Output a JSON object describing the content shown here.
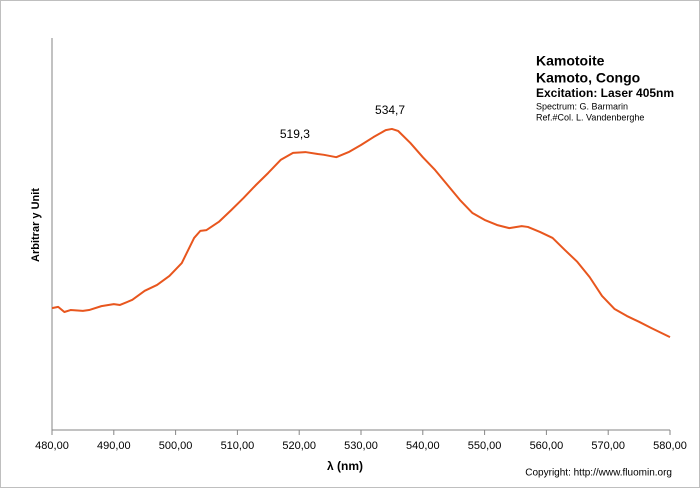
{
  "chart_data": {
    "type": "line",
    "title": "Kamotoite",
    "subtitle": "Kamoto, Congo",
    "notes": [
      "Excitation:  Laser 405nm",
      "Spectrum: G. Barmarin",
      "Ref.#Col. L. Vandenberghe"
    ],
    "copyright": "Copyright: http://www.fluomin.org",
    "x_label": "λ (nm)",
    "y_label": "Arbitrar y Unit",
    "xlim": [
      480,
      580
    ],
    "xticks": [
      {
        "value": 480,
        "label": "480,00"
      },
      {
        "value": 490,
        "label": "490,00"
      },
      {
        "value": 500,
        "label": "500,00"
      },
      {
        "value": 510,
        "label": "510,00"
      },
      {
        "value": 520,
        "label": "520,00"
      },
      {
        "value": 530,
        "label": "530,00"
      },
      {
        "value": 540,
        "label": "540,00"
      },
      {
        "value": 550,
        "label": "550,00"
      },
      {
        "value": 560,
        "label": "560,00"
      },
      {
        "value": 570,
        "label": "570,00"
      },
      {
        "value": 580,
        "label": "580,00"
      }
    ],
    "ylim": [
      0,
      100
    ],
    "peaks": [
      {
        "x": 519.3,
        "label": "519,3"
      },
      {
        "x": 534.7,
        "label": "534,7"
      }
    ],
    "x": [
      480,
      481,
      482,
      483,
      485,
      486,
      488,
      490,
      491,
      493,
      495,
      497,
      499,
      501,
      503,
      504,
      505,
      507,
      509,
      511,
      513,
      515,
      517,
      519,
      521,
      523,
      524,
      526,
      528,
      530,
      532,
      534,
      535,
      536,
      538,
      540,
      542,
      544,
      546,
      548,
      550,
      552,
      554,
      556,
      557,
      559,
      561,
      563,
      565,
      567,
      569,
      571,
      573,
      575,
      577,
      580
    ],
    "series": [
      {
        "name": "Kamotoite",
        "color": "#e8561e",
        "values": [
          31.1,
          31.4,
          30.1,
          30.6,
          30.4,
          30.6,
          31.6,
          32.1,
          31.9,
          33.2,
          35.5,
          37.0,
          39.3,
          42.6,
          49.0,
          50.8,
          51.0,
          53.1,
          56.1,
          59.2,
          62.5,
          65.6,
          68.9,
          70.7,
          70.9,
          70.4,
          70.2,
          69.6,
          70.9,
          72.7,
          74.7,
          76.5,
          76.8,
          76.3,
          73.2,
          69.6,
          66.3,
          62.5,
          58.7,
          55.4,
          53.6,
          52.3,
          51.5,
          52.0,
          51.8,
          50.5,
          49.0,
          45.9,
          42.9,
          39.0,
          34.2,
          30.9,
          29.1,
          27.6,
          26.0,
          23.7
        ]
      }
    ]
  }
}
